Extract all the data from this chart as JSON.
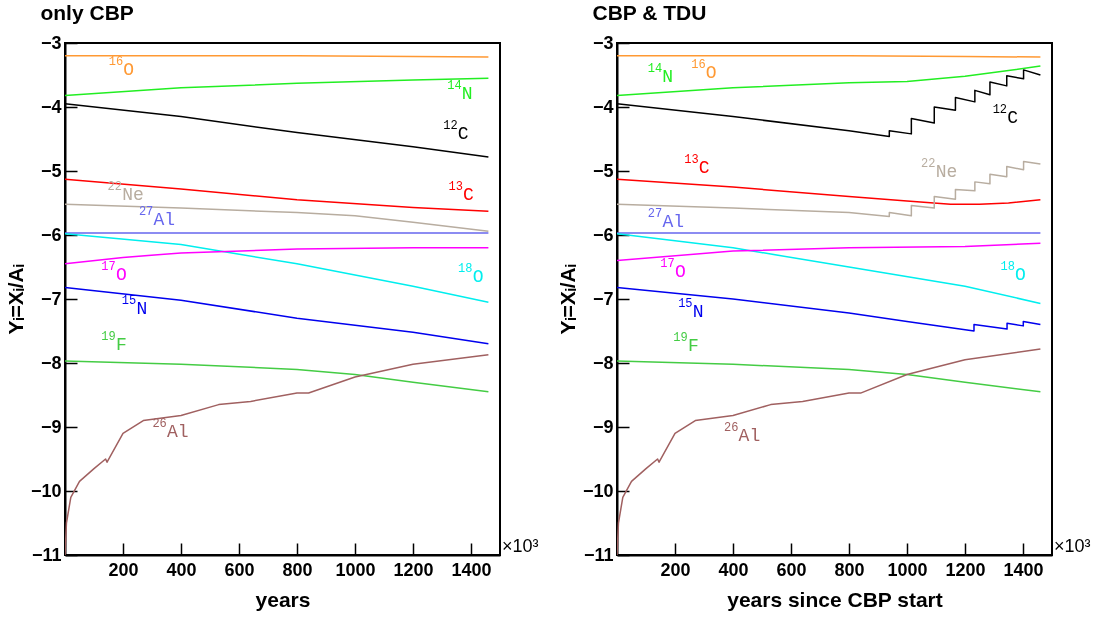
{
  "chart_data": [
    {
      "type": "line",
      "title": "only CBP",
      "xlabel": "years",
      "ylabel": "Yᵢ=Xᵢ/Aᵢ",
      "xlim": [
        0,
        1500
      ],
      "ylim": [
        -11,
        -3
      ],
      "xticks": [
        200,
        400,
        600,
        800,
        1000,
        1200,
        1400
      ],
      "yticks": [
        -11,
        -10,
        -9,
        -8,
        -7,
        -6,
        -5,
        -4,
        -3
      ],
      "series": [
        {
          "name": "$^{16}$O",
          "color": "#ff9933",
          "x": [
            0,
            400,
            800,
            1200,
            1460
          ],
          "values": [
            -3.2,
            -3.2,
            -3.2,
            -3.21,
            -3.22
          ]
        },
        {
          "name": "$^{14}$N",
          "color": "#22ee22",
          "x": [
            0,
            400,
            800,
            1200,
            1460
          ],
          "values": [
            -3.82,
            -3.7,
            -3.63,
            -3.58,
            -3.55
          ]
        },
        {
          "name": "$^{12}$C",
          "color": "#000000",
          "x": [
            0,
            400,
            800,
            1200,
            1460
          ],
          "values": [
            -3.95,
            -4.15,
            -4.4,
            -4.62,
            -4.78
          ]
        },
        {
          "name": "$^{13}$C",
          "color": "#ff0000",
          "x": [
            0,
            400,
            800,
            1200,
            1460
          ],
          "values": [
            -5.13,
            -5.28,
            -5.45,
            -5.57,
            -5.63
          ]
        },
        {
          "name": "$^{22}$Ne",
          "color": "#b8ada0",
          "x": [
            0,
            400,
            800,
            1000,
            1200,
            1460
          ],
          "values": [
            -5.52,
            -5.58,
            -5.65,
            -5.7,
            -5.8,
            -5.94
          ]
        },
        {
          "name": "$^{27}$Al",
          "color": "#6666ee",
          "x": [
            0,
            1460
          ],
          "values": [
            -5.97,
            -5.97
          ]
        },
        {
          "name": "$^{18}$O",
          "color": "#00eeee",
          "x": [
            0,
            400,
            800,
            1200,
            1460
          ],
          "values": [
            -5.98,
            -6.15,
            -6.45,
            -6.8,
            -7.05
          ]
        },
        {
          "name": "$^{17}$O",
          "color": "#ff00ff",
          "x": [
            0,
            200,
            400,
            800,
            1200,
            1460
          ],
          "values": [
            -6.45,
            -6.35,
            -6.28,
            -6.22,
            -6.2,
            -6.2
          ]
        },
        {
          "name": "$^{15}$N",
          "color": "#0000ee",
          "x": [
            0,
            400,
            800,
            1200,
            1460
          ],
          "values": [
            -6.82,
            -7.02,
            -7.3,
            -7.52,
            -7.7
          ]
        },
        {
          "name": "$^{19}$F",
          "color": "#44cc44",
          "x": [
            0,
            400,
            800,
            1000,
            1200,
            1460
          ],
          "values": [
            -7.97,
            -8.02,
            -8.1,
            -8.18,
            -8.3,
            -8.45
          ]
        },
        {
          "name": "$^{26}$Al",
          "color": "#a06060",
          "x": [
            0,
            5,
            20,
            50,
            100,
            140,
            145,
            200,
            270,
            400,
            530,
            640,
            800,
            840,
            1000,
            1200,
            1460
          ],
          "values": [
            -11,
            -10.5,
            -10.1,
            -9.85,
            -9.65,
            -9.5,
            -9.55,
            -9.1,
            -8.9,
            -8.82,
            -8.65,
            -8.6,
            -8.47,
            -8.47,
            -8.22,
            -8.02,
            -7.87
          ]
        }
      ],
      "annotations": [
        "×10³"
      ]
    },
    {
      "type": "line",
      "title": "CBP & TDU",
      "xlabel": "years since CBP start",
      "ylabel": "Yᵢ=Xᵢ/Aᵢ",
      "xlim": [
        0,
        1500
      ],
      "ylim": [
        -11,
        -3
      ],
      "xticks": [
        200,
        400,
        600,
        800,
        1000,
        1200,
        1400
      ],
      "yticks": [
        -11,
        -10,
        -9,
        -8,
        -7,
        -6,
        -5,
        -4,
        -3
      ],
      "series": [
        {
          "name": "$^{16}$O",
          "color": "#ff9933",
          "x": [
            0,
            400,
            800,
            1200,
            1460
          ],
          "values": [
            -3.2,
            -3.2,
            -3.2,
            -3.21,
            -3.22
          ]
        },
        {
          "name": "$^{14}$N",
          "color": "#22ee22",
          "x": [
            0,
            400,
            800,
            1000,
            1200,
            1350,
            1460
          ],
          "values": [
            -3.82,
            -3.7,
            -3.62,
            -3.6,
            -3.52,
            -3.43,
            -3.36
          ]
        },
        {
          "name": "$^{12}$C",
          "color": "#000000",
          "x": [
            0,
            400,
            800,
            939,
            939,
            1015,
            1015,
            1094,
            1094,
            1167,
            1167,
            1234,
            1234,
            1286,
            1286,
            1344,
            1344,
            1402,
            1402,
            1460
          ],
          "values": [
            -3.95,
            -4.15,
            -4.37,
            -4.46,
            -4.37,
            -4.42,
            -4.18,
            -4.25,
            -4.0,
            -4.05,
            -3.85,
            -3.92,
            -3.74,
            -3.81,
            -3.61,
            -3.67,
            -3.51,
            -3.56,
            -3.42,
            -3.5
          ]
        },
        {
          "name": "$^{13}$C",
          "color": "#ff0000",
          "x": [
            0,
            400,
            800,
            1000,
            1150,
            1250,
            1350,
            1460
          ],
          "values": [
            -5.13,
            -5.25,
            -5.4,
            -5.47,
            -5.52,
            -5.52,
            -5.5,
            -5.45
          ]
        },
        {
          "name": "$^{22}$Ne",
          "color": "#b8ada0",
          "x": [
            0,
            400,
            800,
            939,
            939,
            1015,
            1015,
            1094,
            1094,
            1167,
            1167,
            1234,
            1234,
            1286,
            1286,
            1344,
            1344,
            1402,
            1402,
            1460
          ],
          "values": [
            -5.52,
            -5.58,
            -5.65,
            -5.71,
            -5.65,
            -5.7,
            -5.54,
            -5.58,
            -5.4,
            -5.44,
            -5.29,
            -5.31,
            -5.17,
            -5.2,
            -5.05,
            -5.09,
            -4.93,
            -4.98,
            -4.85,
            -4.89
          ]
        },
        {
          "name": "$^{27}$Al",
          "color": "#6666ee",
          "x": [
            0,
            1460
          ],
          "values": [
            -5.97,
            -5.97
          ]
        },
        {
          "name": "$^{18}$O",
          "color": "#00eeee",
          "x": [
            0,
            400,
            800,
            1200,
            1460
          ],
          "values": [
            -5.98,
            -6.2,
            -6.5,
            -6.8,
            -7.07
          ]
        },
        {
          "name": "$^{17}$O",
          "color": "#ff00ff",
          "x": [
            0,
            400,
            800,
            1200,
            1460
          ],
          "values": [
            -6.4,
            -6.25,
            -6.2,
            -6.18,
            -6.13
          ]
        },
        {
          "name": "$^{15}$N",
          "color": "#0000ee",
          "x": [
            0,
            400,
            800,
            1000,
            1231,
            1231,
            1345,
            1345,
            1401,
            1401,
            1460
          ],
          "values": [
            -6.82,
            -7.0,
            -7.22,
            -7.35,
            -7.5,
            -7.4,
            -7.47,
            -7.38,
            -7.42,
            -7.35,
            -7.4
          ]
        },
        {
          "name": "$^{19}$F",
          "color": "#44cc44",
          "x": [
            0,
            400,
            800,
            1000,
            1200,
            1460
          ],
          "values": [
            -7.97,
            -8.02,
            -8.1,
            -8.18,
            -8.3,
            -8.45
          ]
        },
        {
          "name": "$^{26}$Al",
          "color": "#a06060",
          "x": [
            0,
            5,
            20,
            50,
            100,
            140,
            145,
            200,
            270,
            400,
            530,
            640,
            800,
            840,
            1000,
            1200,
            1460
          ],
          "values": [
            -11,
            -10.5,
            -10.1,
            -9.85,
            -9.65,
            -9.5,
            -9.55,
            -9.1,
            -8.9,
            -8.82,
            -8.65,
            -8.6,
            -8.47,
            -8.47,
            -8.18,
            -7.95,
            -7.78
          ]
        }
      ],
      "annotations": [
        "×10³"
      ]
    }
  ]
}
